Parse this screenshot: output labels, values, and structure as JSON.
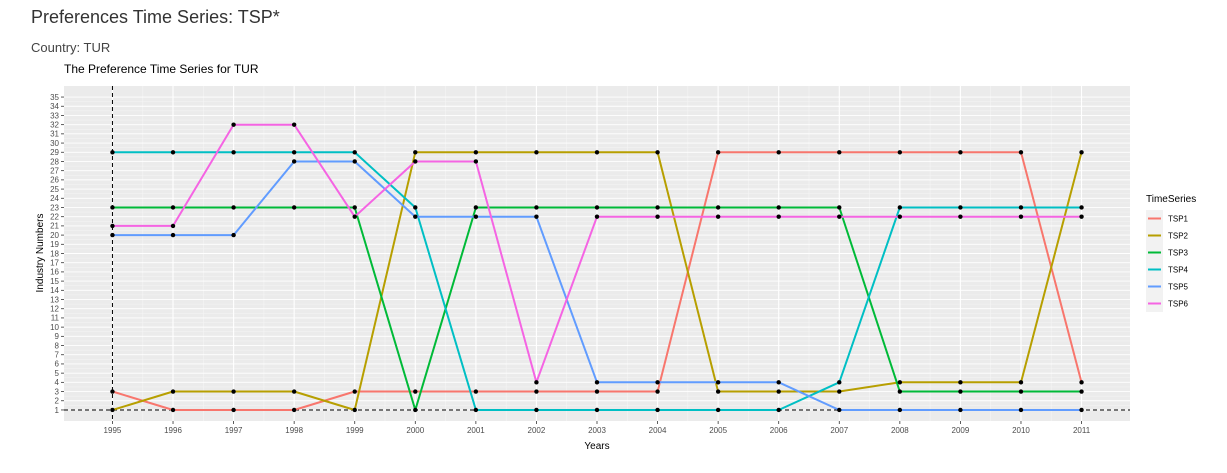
{
  "page": {
    "title": "Preferences Time Series: TSP*",
    "country_label": "Country: TUR"
  },
  "chart_data": {
    "type": "line",
    "title": "The Preference Time Series for  TUR",
    "xlabel": "Years",
    "ylabel": "Industry Numbers",
    "x": [
      1995,
      1996,
      1997,
      1998,
      1999,
      2000,
      2001,
      2002,
      2003,
      2004,
      2005,
      2006,
      2007,
      2008,
      2009,
      2010,
      2011
    ],
    "xlim": [
      1994.2,
      2011.8
    ],
    "ylim": [
      -0.2,
      36.2
    ],
    "yticks": [
      1,
      2,
      3,
      4,
      5,
      6,
      7,
      8,
      9,
      10,
      11,
      12,
      13,
      14,
      15,
      16,
      17,
      18,
      19,
      20,
      21,
      22,
      23,
      24,
      25,
      26,
      27,
      28,
      29,
      30,
      31,
      32,
      33,
      34,
      35
    ],
    "grid": true,
    "reference_lines": {
      "vertical_x": 1995,
      "horizontal_y": 1,
      "style": "dashed"
    },
    "legend": {
      "title": "TimeSeries",
      "position": "right"
    },
    "series": [
      {
        "name": "TSP1",
        "color": "#F8766D",
        "values": [
          3,
          1,
          1,
          1,
          3,
          3,
          3,
          3,
          3,
          3,
          29,
          29,
          29,
          29,
          29,
          29,
          4
        ]
      },
      {
        "name": "TSP2",
        "color": "#B79F00",
        "values": [
          1,
          3,
          3,
          3,
          1,
          29,
          29,
          29,
          29,
          29,
          3,
          3,
          3,
          4,
          4,
          4,
          29
        ]
      },
      {
        "name": "TSP3",
        "color": "#00BA38",
        "values": [
          23,
          23,
          23,
          23,
          23,
          1,
          23,
          23,
          23,
          23,
          23,
          23,
          23,
          3,
          3,
          3,
          3
        ]
      },
      {
        "name": "TSP4",
        "color": "#00BFC4",
        "values": [
          29,
          29,
          29,
          29,
          29,
          23,
          1,
          1,
          1,
          1,
          1,
          1,
          4,
          23,
          23,
          23,
          23
        ]
      },
      {
        "name": "TSP5",
        "color": "#619CFF",
        "values": [
          20,
          20,
          20,
          28,
          28,
          22,
          22,
          22,
          4,
          4,
          4,
          4,
          1,
          1,
          1,
          1,
          1
        ]
      },
      {
        "name": "TSP6",
        "color": "#F564E3",
        "values": [
          21,
          21,
          32,
          32,
          22,
          28,
          28,
          4,
          22,
          22,
          22,
          22,
          22,
          22,
          22,
          22,
          22
        ]
      }
    ]
  }
}
